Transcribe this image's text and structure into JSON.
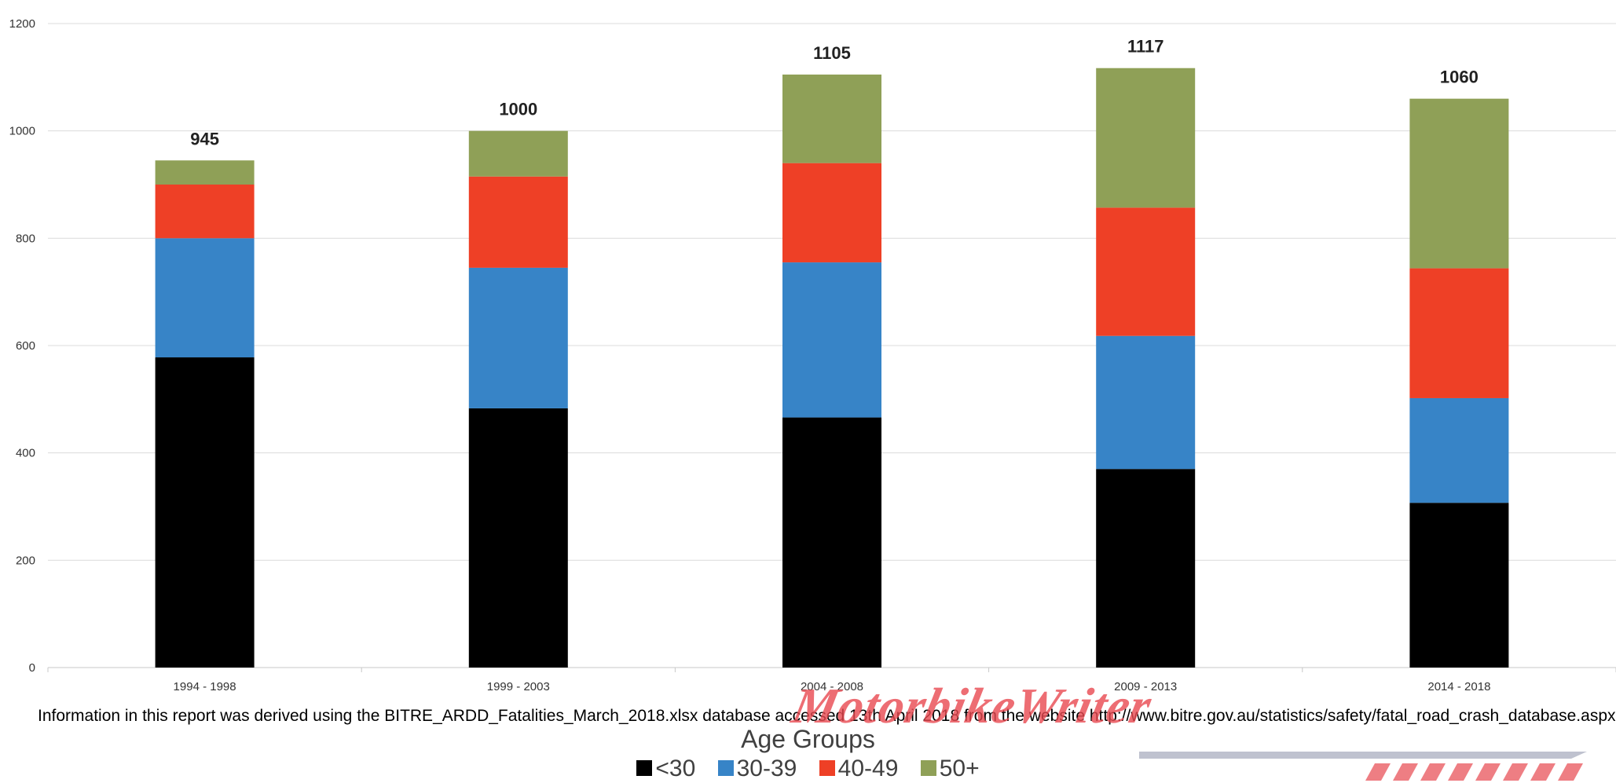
{
  "chart_data": {
    "type": "bar",
    "stacked": true,
    "categories": [
      "1994 - 1998",
      "1999 - 2003",
      "2004 - 2008",
      "2009 - 2013",
      "2014 - 2018"
    ],
    "series": [
      {
        "name": "<30",
        "color": "#000000",
        "values": [
          578,
          483,
          466,
          370,
          307
        ]
      },
      {
        "name": "30-39",
        "color": "#3784c7",
        "values": [
          222,
          262,
          289,
          248,
          195
        ]
      },
      {
        "name": "40-49",
        "color": "#ee4026",
        "values": [
          100,
          170,
          185,
          239,
          242
        ]
      },
      {
        "name": "50+",
        "color": "#8fa057",
        "values": [
          45,
          85,
          165,
          260,
          316
        ]
      }
    ],
    "totals": [
      "945",
      "1000",
      "1105",
      "1117",
      "1060"
    ],
    "ylim": [
      0,
      1200
    ],
    "yticks": [
      0,
      200,
      400,
      600,
      800,
      1000,
      1200
    ],
    "grid": true,
    "legend_title": "Age Groups",
    "legend_position": "bottom"
  },
  "note": "Information in this report was derived using the BITRE_ARDD_Fatalities_March_2018.xlsx database accessed 13th April 2018 from the website http://www.bitre.gov.au/statistics/safety/fatal_road_crash_database.aspx.",
  "watermark": "MotorbikeWriter"
}
